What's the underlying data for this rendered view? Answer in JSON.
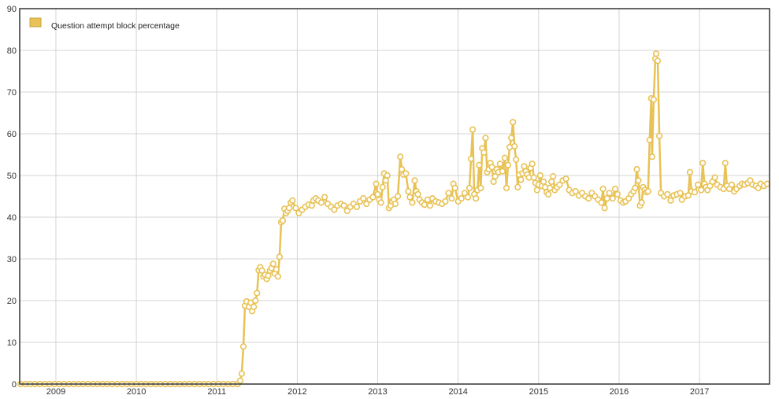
{
  "chart_data": {
    "type": "line",
    "title": "",
    "xlabel": "",
    "ylabel": "",
    "x_ticks": [
      "2009",
      "2010",
      "2011",
      "2012",
      "2013",
      "2014",
      "2015",
      "2016",
      "2017"
    ],
    "y_ticks": [
      "0",
      "10",
      "20",
      "30",
      "40",
      "50",
      "60",
      "70",
      "80",
      "90"
    ],
    "xlim": [
      2008.55,
      2017.87
    ],
    "ylim": [
      0,
      90
    ],
    "grid": true,
    "legend_position": "top-left",
    "series": [
      {
        "name": "Question attempt block percentage",
        "color": "#e8c255",
        "marker": "hollow-circle",
        "points": [
          [
            2008.56,
            0
          ],
          [
            2008.62,
            0
          ],
          [
            2008.68,
            0
          ],
          [
            2008.74,
            0
          ],
          [
            2008.8,
            0
          ],
          [
            2008.86,
            0
          ],
          [
            2008.92,
            0
          ],
          [
            2008.98,
            0
          ],
          [
            2009.04,
            0
          ],
          [
            2009.1,
            0
          ],
          [
            2009.16,
            0
          ],
          [
            2009.22,
            0
          ],
          [
            2009.28,
            0
          ],
          [
            2009.34,
            0
          ],
          [
            2009.4,
            0
          ],
          [
            2009.46,
            0
          ],
          [
            2009.52,
            0
          ],
          [
            2009.58,
            0
          ],
          [
            2009.64,
            0
          ],
          [
            2009.7,
            0
          ],
          [
            2009.76,
            0
          ],
          [
            2009.82,
            0
          ],
          [
            2009.88,
            0
          ],
          [
            2009.94,
            0
          ],
          [
            2010.0,
            0
          ],
          [
            2010.06,
            0
          ],
          [
            2010.12,
            0
          ],
          [
            2010.18,
            0
          ],
          [
            2010.24,
            0
          ],
          [
            2010.3,
            0
          ],
          [
            2010.36,
            0
          ],
          [
            2010.42,
            0
          ],
          [
            2010.48,
            0
          ],
          [
            2010.54,
            0
          ],
          [
            2010.6,
            0
          ],
          [
            2010.66,
            0
          ],
          [
            2010.72,
            0
          ],
          [
            2010.78,
            0
          ],
          [
            2010.84,
            0
          ],
          [
            2010.9,
            0
          ],
          [
            2010.96,
            0
          ],
          [
            2011.02,
            0
          ],
          [
            2011.08,
            0
          ],
          [
            2011.14,
            0
          ],
          [
            2011.2,
            0
          ],
          [
            2011.26,
            0
          ],
          [
            2011.29,
            0.8
          ],
          [
            2011.31,
            2.5
          ],
          [
            2011.33,
            9
          ],
          [
            2011.35,
            18.8
          ],
          [
            2011.37,
            19.8
          ],
          [
            2011.4,
            18.5
          ],
          [
            2011.42,
            19.5
          ],
          [
            2011.44,
            17.5
          ],
          [
            2011.46,
            18.5
          ],
          [
            2011.48,
            20
          ],
          [
            2011.5,
            21.8
          ],
          [
            2011.52,
            27.3
          ],
          [
            2011.54,
            28
          ],
          [
            2011.56,
            27.2
          ],
          [
            2011.58,
            25.8
          ],
          [
            2011.6,
            26.2
          ],
          [
            2011.62,
            25.2
          ],
          [
            2011.64,
            26
          ],
          [
            2011.66,
            27.2
          ],
          [
            2011.68,
            27.8
          ],
          [
            2011.7,
            28.8
          ],
          [
            2011.72,
            26.5
          ],
          [
            2011.74,
            27.5
          ],
          [
            2011.76,
            25.8
          ],
          [
            2011.78,
            30.5
          ],
          [
            2011.8,
            38.8
          ],
          [
            2011.82,
            39.2
          ],
          [
            2011.84,
            42
          ],
          [
            2011.86,
            41
          ],
          [
            2011.88,
            41.5
          ],
          [
            2011.9,
            42.2
          ],
          [
            2011.92,
            43.5
          ],
          [
            2011.94,
            44
          ],
          [
            2011.98,
            42.2
          ],
          [
            2012.02,
            41
          ],
          [
            2012.06,
            41.8
          ],
          [
            2012.1,
            42.5
          ],
          [
            2012.14,
            43
          ],
          [
            2012.18,
            42.8
          ],
          [
            2012.2,
            44
          ],
          [
            2012.23,
            44.5
          ],
          [
            2012.26,
            44
          ],
          [
            2012.3,
            43.5
          ],
          [
            2012.34,
            44.8
          ],
          [
            2012.38,
            43.2
          ],
          [
            2012.42,
            42.5
          ],
          [
            2012.46,
            41.8
          ],
          [
            2012.5,
            42.8
          ],
          [
            2012.54,
            43.2
          ],
          [
            2012.58,
            42.8
          ],
          [
            2012.62,
            41.5
          ],
          [
            2012.66,
            42.5
          ],
          [
            2012.7,
            43.2
          ],
          [
            2012.74,
            42.5
          ],
          [
            2012.78,
            43.8
          ],
          [
            2012.82,
            44.5
          ],
          [
            2012.86,
            43.2
          ],
          [
            2012.9,
            44.2
          ],
          [
            2012.94,
            44.8
          ],
          [
            2012.98,
            48
          ],
          [
            2013.0,
            45.5
          ],
          [
            2013.02,
            44.2
          ],
          [
            2013.04,
            43.5
          ],
          [
            2013.06,
            47.2
          ],
          [
            2013.08,
            50.5
          ],
          [
            2013.1,
            48.8
          ],
          [
            2013.12,
            50
          ],
          [
            2013.14,
            42.2
          ],
          [
            2013.16,
            42.8
          ],
          [
            2013.18,
            43.8
          ],
          [
            2013.2,
            44.2
          ],
          [
            2013.22,
            43.2
          ],
          [
            2013.25,
            45
          ],
          [
            2013.28,
            54.5
          ],
          [
            2013.3,
            51.5
          ],
          [
            2013.32,
            50.2
          ],
          [
            2013.35,
            50.5
          ],
          [
            2013.38,
            46.2
          ],
          [
            2013.4,
            44.8
          ],
          [
            2013.43,
            43.5
          ],
          [
            2013.46,
            48.8
          ],
          [
            2013.48,
            46.2
          ],
          [
            2013.5,
            45.5
          ],
          [
            2013.52,
            44.2
          ],
          [
            2013.55,
            43.5
          ],
          [
            2013.58,
            43
          ],
          [
            2013.62,
            44.2
          ],
          [
            2013.65,
            42.8
          ],
          [
            2013.68,
            44.5
          ],
          [
            2013.72,
            43.8
          ],
          [
            2013.76,
            43.5
          ],
          [
            2013.8,
            43.2
          ],
          [
            2013.84,
            43.8
          ],
          [
            2013.88,
            45.8
          ],
          [
            2013.92,
            44.5
          ],
          [
            2013.94,
            48
          ],
          [
            2013.96,
            47
          ],
          [
            2014.0,
            43.8
          ],
          [
            2014.04,
            44.5
          ],
          [
            2014.08,
            45.8
          ],
          [
            2014.12,
            44.8
          ],
          [
            2014.14,
            47
          ],
          [
            2014.16,
            54
          ],
          [
            2014.18,
            61
          ],
          [
            2014.2,
            45.5
          ],
          [
            2014.22,
            44.5
          ],
          [
            2014.24,
            46.5
          ],
          [
            2014.26,
            52.5
          ],
          [
            2014.28,
            47
          ],
          [
            2014.3,
            56.5
          ],
          [
            2014.32,
            55.5
          ],
          [
            2014.34,
            59
          ],
          [
            2014.36,
            50.8
          ],
          [
            2014.38,
            51.5
          ],
          [
            2014.4,
            53
          ],
          [
            2014.42,
            52
          ],
          [
            2014.44,
            48.5
          ],
          [
            2014.46,
            49.8
          ],
          [
            2014.48,
            51.5
          ],
          [
            2014.5,
            50.8
          ],
          [
            2014.52,
            52.8
          ],
          [
            2014.55,
            51
          ],
          [
            2014.58,
            54.2
          ],
          [
            2014.6,
            47
          ],
          [
            2014.62,
            52.5
          ],
          [
            2014.64,
            56.8
          ],
          [
            2014.66,
            59
          ],
          [
            2014.68,
            62.8
          ],
          [
            2014.7,
            57
          ],
          [
            2014.72,
            53.8
          ],
          [
            2014.74,
            47.2
          ],
          [
            2014.76,
            50.2
          ],
          [
            2014.78,
            49
          ],
          [
            2014.8,
            50.5
          ],
          [
            2014.82,
            52.2
          ],
          [
            2014.84,
            51
          ],
          [
            2014.86,
            50.2
          ],
          [
            2014.88,
            49.5
          ],
          [
            2014.9,
            51.8
          ],
          [
            2014.92,
            52.8
          ],
          [
            2014.94,
            49.5
          ],
          [
            2014.96,
            48.2
          ],
          [
            2014.98,
            46.5
          ],
          [
            2015.0,
            47.8
          ],
          [
            2015.02,
            50
          ],
          [
            2015.04,
            47.5
          ],
          [
            2015.06,
            48.5
          ],
          [
            2015.08,
            47.2
          ],
          [
            2015.1,
            46
          ],
          [
            2015.12,
            45.5
          ],
          [
            2015.14,
            47
          ],
          [
            2015.16,
            48.5
          ],
          [
            2015.18,
            49.8
          ],
          [
            2015.2,
            46.5
          ],
          [
            2015.23,
            47.2
          ],
          [
            2015.26,
            47.8
          ],
          [
            2015.3,
            48.8
          ],
          [
            2015.34,
            49.2
          ],
          [
            2015.38,
            46.5
          ],
          [
            2015.42,
            45.8
          ],
          [
            2015.46,
            46.2
          ],
          [
            2015.5,
            45.2
          ],
          [
            2015.54,
            45.8
          ],
          [
            2015.58,
            45
          ],
          [
            2015.62,
            44.5
          ],
          [
            2015.66,
            45.8
          ],
          [
            2015.7,
            45
          ],
          [
            2015.74,
            44.2
          ],
          [
            2015.78,
            43.5
          ],
          [
            2015.8,
            46.8
          ],
          [
            2015.82,
            42.2
          ],
          [
            2015.85,
            44.5
          ],
          [
            2015.88,
            45.8
          ],
          [
            2015.92,
            44.5
          ],
          [
            2015.95,
            46.8
          ],
          [
            2015.98,
            45.5
          ],
          [
            2016.02,
            44
          ],
          [
            2016.05,
            43.5
          ],
          [
            2016.08,
            43.8
          ],
          [
            2016.12,
            44.5
          ],
          [
            2016.15,
            45.5
          ],
          [
            2016.18,
            46.2
          ],
          [
            2016.2,
            47
          ],
          [
            2016.22,
            51.5
          ],
          [
            2016.24,
            48.8
          ],
          [
            2016.26,
            42.8
          ],
          [
            2016.28,
            43.5
          ],
          [
            2016.3,
            47.2
          ],
          [
            2016.32,
            46.5
          ],
          [
            2016.34,
            46
          ],
          [
            2016.36,
            46.2
          ],
          [
            2016.38,
            58.5
          ],
          [
            2016.4,
            68.5
          ],
          [
            2016.41,
            54.5
          ],
          [
            2016.43,
            68.2
          ],
          [
            2016.45,
            78
          ],
          [
            2016.46,
            79.2
          ],
          [
            2016.48,
            77.5
          ],
          [
            2016.5,
            59.5
          ],
          [
            2016.52,
            45.8
          ],
          [
            2016.56,
            45
          ],
          [
            2016.6,
            45.5
          ],
          [
            2016.64,
            44
          ],
          [
            2016.68,
            45.2
          ],
          [
            2016.72,
            45.5
          ],
          [
            2016.76,
            45.8
          ],
          [
            2016.78,
            44.2
          ],
          [
            2016.82,
            45
          ],
          [
            2016.86,
            45.2
          ],
          [
            2016.88,
            50.8
          ],
          [
            2016.9,
            46.2
          ],
          [
            2016.94,
            46
          ],
          [
            2016.98,
            47.8
          ],
          [
            2017.02,
            46.5
          ],
          [
            2017.04,
            53
          ],
          [
            2017.06,
            48
          ],
          [
            2017.08,
            47.2
          ],
          [
            2017.1,
            46.5
          ],
          [
            2017.13,
            47.5
          ],
          [
            2017.16,
            48.5
          ],
          [
            2017.19,
            49.5
          ],
          [
            2017.22,
            47.8
          ],
          [
            2017.26,
            47.2
          ],
          [
            2017.3,
            46.8
          ],
          [
            2017.32,
            53
          ],
          [
            2017.34,
            47.5
          ],
          [
            2017.37,
            46.8
          ],
          [
            2017.4,
            47.8
          ],
          [
            2017.43,
            46.2
          ],
          [
            2017.46,
            46.8
          ],
          [
            2017.5,
            47.5
          ],
          [
            2017.53,
            48
          ],
          [
            2017.56,
            47.8
          ],
          [
            2017.6,
            48.2
          ],
          [
            2017.63,
            48.8
          ],
          [
            2017.66,
            47.8
          ],
          [
            2017.7,
            47.5
          ],
          [
            2017.73,
            47
          ],
          [
            2017.76,
            48
          ],
          [
            2017.8,
            47.5
          ],
          [
            2017.84,
            48
          ]
        ]
      }
    ]
  }
}
